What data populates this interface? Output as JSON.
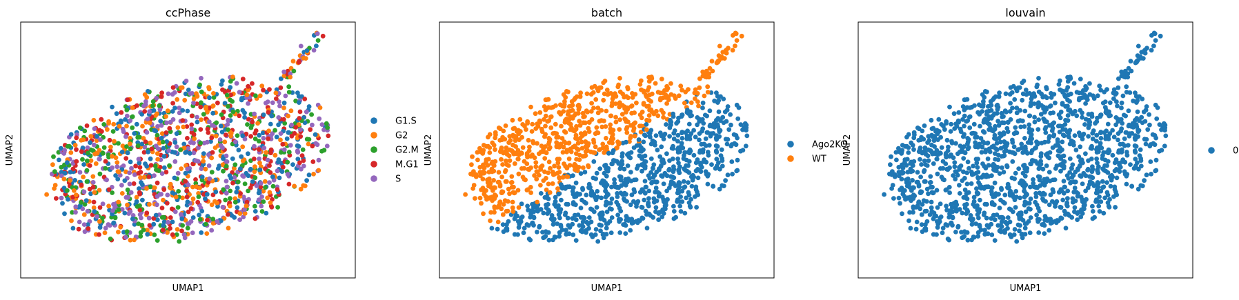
{
  "chart_data": [
    {
      "type": "scatter",
      "title": "ccPhase",
      "xlabel": "UMAP1",
      "ylabel": "UMAP2",
      "xticks": [],
      "yticks": [],
      "grid": false,
      "legend_placement": "right",
      "n_points": 1400,
      "layout": "elliptical point cloud, random mixing of categories",
      "series": [
        {
          "name": "G1.S",
          "color": "#1f77b4"
        },
        {
          "name": "G2",
          "color": "#ff7f0e"
        },
        {
          "name": "G2.M",
          "color": "#2ca02c"
        },
        {
          "name": "M.G1",
          "color": "#d62728"
        },
        {
          "name": "S",
          "color": "#9467bd"
        }
      ]
    },
    {
      "type": "scatter",
      "title": "batch",
      "xlabel": "UMAP1",
      "ylabel": "UMAP2",
      "xticks": [],
      "yticks": [],
      "grid": false,
      "legend_placement": "right",
      "n_points": 1400,
      "layout": "elliptical point cloud; WT in upper-left half, Ago2KO in lower-right half",
      "series": [
        {
          "name": "Ago2KO",
          "color": "#1f77b4"
        },
        {
          "name": "WT",
          "color": "#ff7f0e"
        }
      ]
    },
    {
      "type": "scatter",
      "title": "louvain",
      "xlabel": "UMAP1",
      "ylabel": "UMAP2",
      "xticks": [],
      "yticks": [],
      "grid": false,
      "legend_placement": "right",
      "n_points": 1400,
      "layout": "elliptical point cloud, single cluster",
      "series": [
        {
          "name": "0",
          "color": "#1f77b4"
        }
      ]
    }
  ]
}
